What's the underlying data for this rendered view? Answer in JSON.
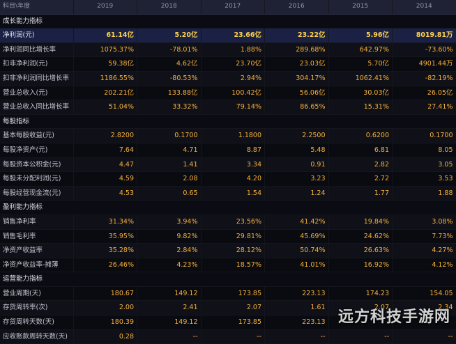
{
  "header": {
    "label": "科目\\年度",
    "years": [
      "2019",
      "2018",
      "2017",
      "2016",
      "2015",
      "2014"
    ]
  },
  "sections": [
    {
      "title": "成长能力指标",
      "rows": [
        {
          "label": "净利润(元)",
          "highlight": true,
          "values": [
            "61.14亿",
            "5.20亿",
            "23.66亿",
            "23.22亿",
            "5.96亿",
            "8019.81万"
          ]
        },
        {
          "label": "净利润同比增长率",
          "values": [
            "1075.37%",
            "-78.01%",
            "1.88%",
            "289.68%",
            "642.97%",
            "-73.60%"
          ]
        },
        {
          "label": "扣非净利润(元)",
          "values": [
            "59.38亿",
            "4.62亿",
            "23.70亿",
            "23.03亿",
            "5.70亿",
            "4901.44万"
          ]
        },
        {
          "label": "扣非净利润同比增长率",
          "values": [
            "1186.55%",
            "-80.53%",
            "2.94%",
            "304.17%",
            "1062.41%",
            "-82.19%"
          ]
        },
        {
          "label": "营业总收入(元)",
          "values": [
            "202.21亿",
            "133.88亿",
            "100.42亿",
            "56.06亿",
            "30.03亿",
            "26.05亿"
          ]
        },
        {
          "label": "营业总收入同比增长率",
          "values": [
            "51.04%",
            "33.32%",
            "79.14%",
            "86.65%",
            "15.31%",
            "27.41%"
          ]
        }
      ]
    },
    {
      "title": "每股指标",
      "rows": [
        {
          "label": "基本每股收益(元)",
          "values": [
            "2.8200",
            "0.1700",
            "1.1800",
            "2.2500",
            "0.6200",
            "0.1700"
          ]
        },
        {
          "label": "每股净资产(元)",
          "values": [
            "7.64",
            "4.71",
            "8.87",
            "5.48",
            "6.81",
            "8.05"
          ]
        },
        {
          "label": "每股资本公积金(元)",
          "values": [
            "4.47",
            "1.41",
            "3.34",
            "0.91",
            "2.82",
            "3.05"
          ]
        },
        {
          "label": "每股未分配利润(元)",
          "values": [
            "4.59",
            "2.08",
            "4.20",
            "3.23",
            "2.72",
            "3.53"
          ]
        },
        {
          "label": "每股经营现金流(元)",
          "values": [
            "4.53",
            "0.65",
            "1.54",
            "1.24",
            "1.77",
            "1.88"
          ]
        }
      ]
    },
    {
      "title": "盈利能力指标",
      "rows": [
        {
          "label": "销售净利率",
          "values": [
            "31.34%",
            "3.94%",
            "23.56%",
            "41.42%",
            "19.84%",
            "3.08%"
          ]
        },
        {
          "label": "销售毛利率",
          "values": [
            "35.95%",
            "9.82%",
            "29.81%",
            "45.69%",
            "24.62%",
            "7.73%"
          ]
        },
        {
          "label": "净资产收益率",
          "values": [
            "35.28%",
            "2.84%",
            "28.12%",
            "50.74%",
            "26.63%",
            "4.27%"
          ]
        },
        {
          "label": "净资产收益率-摊薄",
          "values": [
            "26.46%",
            "4.23%",
            "18.57%",
            "41.01%",
            "16.92%",
            "4.12%"
          ]
        }
      ]
    },
    {
      "title": "运营能力指标",
      "rows": [
        {
          "label": "营业周期(天)",
          "values": [
            "180.67",
            "149.12",
            "173.85",
            "223.13",
            "174.23",
            "154.05"
          ]
        },
        {
          "label": "存货周转率(次)",
          "values": [
            "2.00",
            "2.41",
            "2.07",
            "1.61",
            "2.07",
            "2.34"
          ]
        },
        {
          "label": "存货周转天数(天)",
          "values": [
            "180.39",
            "149.12",
            "173.85",
            "223.13",
            "",
            ""
          ]
        },
        {
          "label": "应收账款周转天数(天)",
          "values": [
            "0.28",
            "--",
            "--",
            "--",
            "--",
            "--"
          ]
        }
      ]
    }
  ],
  "watermark": "远方科技手游网"
}
